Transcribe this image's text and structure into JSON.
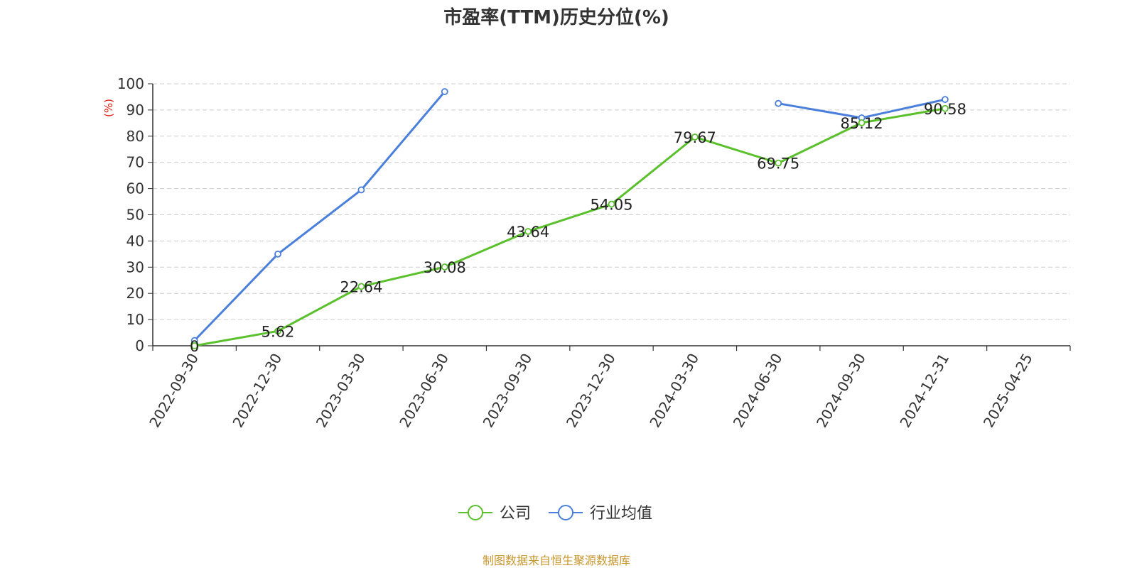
{
  "title": "市盈率(TTM)历史分位(%)",
  "source_note": "制图数据来自恒生聚源数据库",
  "chart_data": {
    "type": "line",
    "title": "市盈率(TTM)历史分位(%)",
    "ylabel": "(%)",
    "xlabel": "",
    "ylim": [
      0,
      100
    ],
    "yticks": [
      "0",
      "10",
      "20",
      "30",
      "40",
      "50",
      "60",
      "70",
      "80",
      "90",
      "100"
    ],
    "categories": [
      "2022-09-30",
      "2022-12-30",
      "2023-03-30",
      "2023-06-30",
      "2023-09-30",
      "2023-12-30",
      "2024-03-30",
      "2024-06-30",
      "2024-09-30",
      "2024-12-31",
      "2025-04-25"
    ],
    "grid": true,
    "legend_position": "bottom-center",
    "series": [
      {
        "name": "公司",
        "color": "#5ac02c",
        "values": [
          0,
          5.62,
          22.64,
          30.08,
          43.64,
          54.05,
          79.67,
          69.75,
          85.12,
          90.58,
          null
        ],
        "labels": [
          "0",
          "5.62",
          "22.64",
          "30.08",
          "43.64",
          "54.05",
          "79.67",
          "69.75",
          "85.12",
          "90.58",
          ""
        ]
      },
      {
        "name": "行业均值",
        "color": "#4a7fdb",
        "values": [
          2,
          35,
          59.5,
          97,
          null,
          null,
          null,
          92.5,
          87,
          94,
          null
        ],
        "labels": []
      }
    ]
  }
}
